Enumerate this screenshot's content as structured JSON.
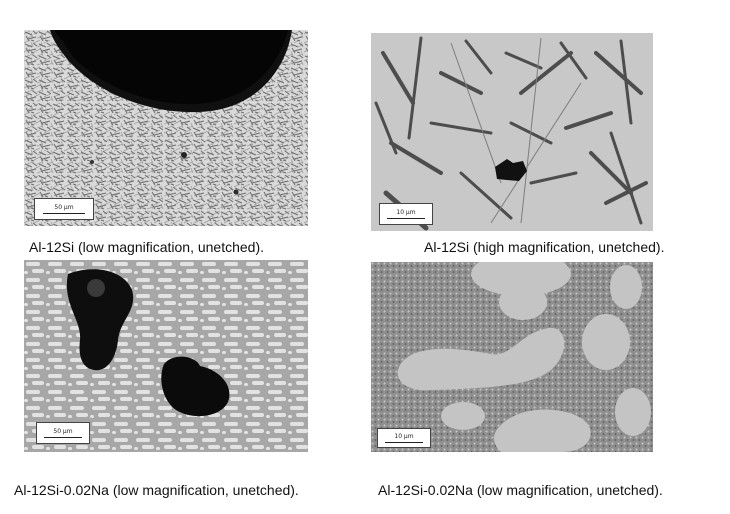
{
  "panels": [
    {
      "caption": "Al-12Si (low magnification, unetched).",
      "scale_label": "50 µm"
    },
    {
      "caption": "Al-12Si (high magnification, unetched).",
      "scale_label": "10 µm"
    },
    {
      "caption": "Al-12Si-0.02Na (low magnification, unetched).",
      "scale_label": "50 µm"
    },
    {
      "caption": "Al-12Si-0.02Na (low magnification, unetched).",
      "scale_label": "10 µm"
    }
  ]
}
